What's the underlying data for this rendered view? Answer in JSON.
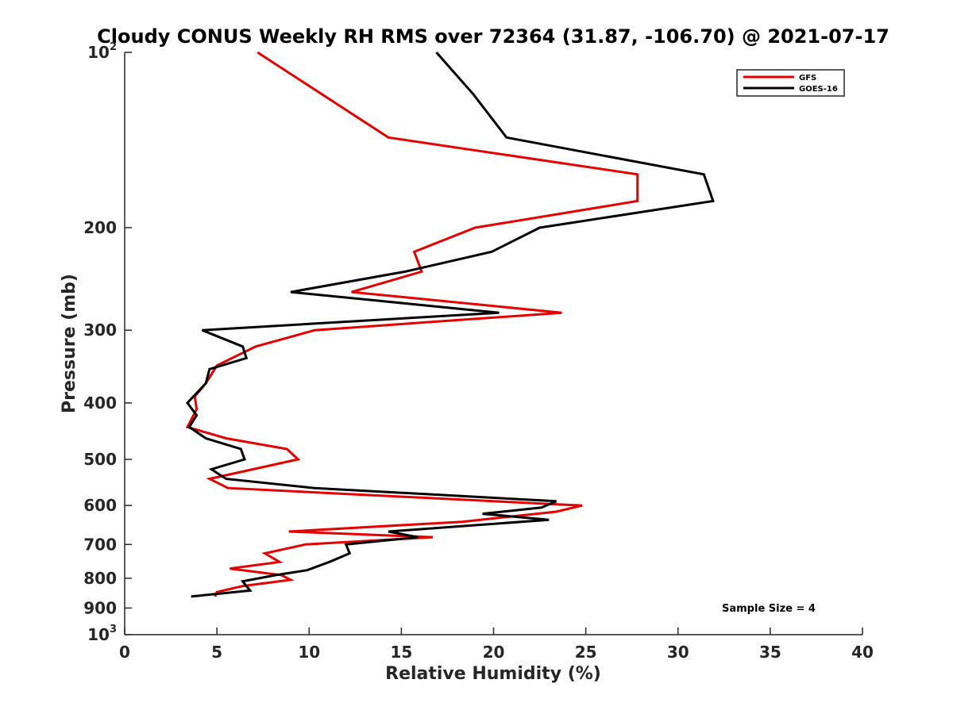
{
  "chart_data": {
    "type": "line",
    "title": "Cloudy CONUS Weekly RH RMS over 72364 (31.87, -106.70) @ 2021-07-17",
    "xlabel": "Relative Humidity (%)",
    "ylabel": "Pressure (mb)",
    "xlim": [
      0,
      40
    ],
    "ylim": [
      100,
      1000
    ],
    "y_scale": "log",
    "y_reversed": true,
    "x_ticks": [
      0,
      5,
      10,
      15,
      20,
      25,
      30,
      35,
      40
    ],
    "x_tick_labels": [
      "0",
      "5",
      "10",
      "15",
      "20",
      "25",
      "30",
      "35",
      "40"
    ],
    "y_ticks": [
      100,
      200,
      300,
      400,
      500,
      600,
      700,
      800,
      900,
      1000
    ],
    "y_tick_labels": [
      {
        "base": "10",
        "sup": "2"
      },
      {
        "base": "200",
        "sup": ""
      },
      {
        "base": "300",
        "sup": ""
      },
      {
        "base": "400",
        "sup": ""
      },
      {
        "base": "500",
        "sup": ""
      },
      {
        "base": "600",
        "sup": ""
      },
      {
        "base": "700",
        "sup": ""
      },
      {
        "base": "800",
        "sup": ""
      },
      {
        "base": "900",
        "sup": ""
      },
      {
        "base": "10",
        "sup": "3"
      }
    ],
    "grid": false,
    "legend_position": "top-right",
    "annotation": "Sample Size = 4",
    "series": [
      {
        "name": "GFS",
        "color": "#e60000",
        "points": [
          [
            7.2,
            100
          ],
          [
            14.3,
            140
          ],
          [
            27.8,
            162
          ],
          [
            27.8,
            180
          ],
          [
            19.0,
            200
          ],
          [
            15.7,
            220
          ],
          [
            16.1,
            238
          ],
          [
            12.3,
            258
          ],
          [
            23.7,
            280
          ],
          [
            10.3,
            300
          ],
          [
            7.1,
            320
          ],
          [
            5.0,
            345
          ],
          [
            4.4,
            370
          ],
          [
            3.8,
            390
          ],
          [
            3.9,
            410
          ],
          [
            3.4,
            440
          ],
          [
            5.5,
            460
          ],
          [
            8.8,
            480
          ],
          [
            9.4,
            500
          ],
          [
            4.6,
            540
          ],
          [
            5.6,
            560
          ],
          [
            20.0,
            590
          ],
          [
            24.8,
            600
          ],
          [
            23.4,
            615
          ],
          [
            18.3,
            640
          ],
          [
            8.9,
            665
          ],
          [
            16.7,
            680
          ],
          [
            9.8,
            700
          ],
          [
            7.6,
            725
          ],
          [
            8.4,
            750
          ],
          [
            5.7,
            770
          ],
          [
            8.5,
            790
          ],
          [
            9.0,
            805
          ],
          [
            6.4,
            825
          ],
          [
            5.0,
            845
          ],
          [
            4.9,
            860
          ]
        ]
      },
      {
        "name": "GOES-16",
        "color": "#000000",
        "points": [
          [
            16.9,
            100
          ],
          [
            18.9,
            118
          ],
          [
            20.7,
            140
          ],
          [
            31.4,
            162
          ],
          [
            31.9,
            180
          ],
          [
            22.5,
            200
          ],
          [
            19.9,
            220
          ],
          [
            15.2,
            238
          ],
          [
            9.0,
            258
          ],
          [
            20.3,
            280
          ],
          [
            4.2,
            300
          ],
          [
            6.4,
            320
          ],
          [
            6.6,
            335
          ],
          [
            4.6,
            350
          ],
          [
            4.4,
            370
          ],
          [
            3.4,
            400
          ],
          [
            3.9,
            420
          ],
          [
            3.5,
            440
          ],
          [
            4.4,
            460
          ],
          [
            6.3,
            480
          ],
          [
            6.5,
            500
          ],
          [
            4.7,
            520
          ],
          [
            5.5,
            540
          ],
          [
            10.3,
            560
          ],
          [
            23.4,
            590
          ],
          [
            22.6,
            605
          ],
          [
            19.4,
            620
          ],
          [
            23.0,
            635
          ],
          [
            14.3,
            665
          ],
          [
            15.9,
            680
          ],
          [
            12.0,
            700
          ],
          [
            12.2,
            725
          ],
          [
            11.1,
            750
          ],
          [
            9.9,
            775
          ],
          [
            8.2,
            790
          ],
          [
            6.4,
            810
          ],
          [
            6.8,
            840
          ],
          [
            3.6,
            860
          ]
        ]
      }
    ]
  }
}
